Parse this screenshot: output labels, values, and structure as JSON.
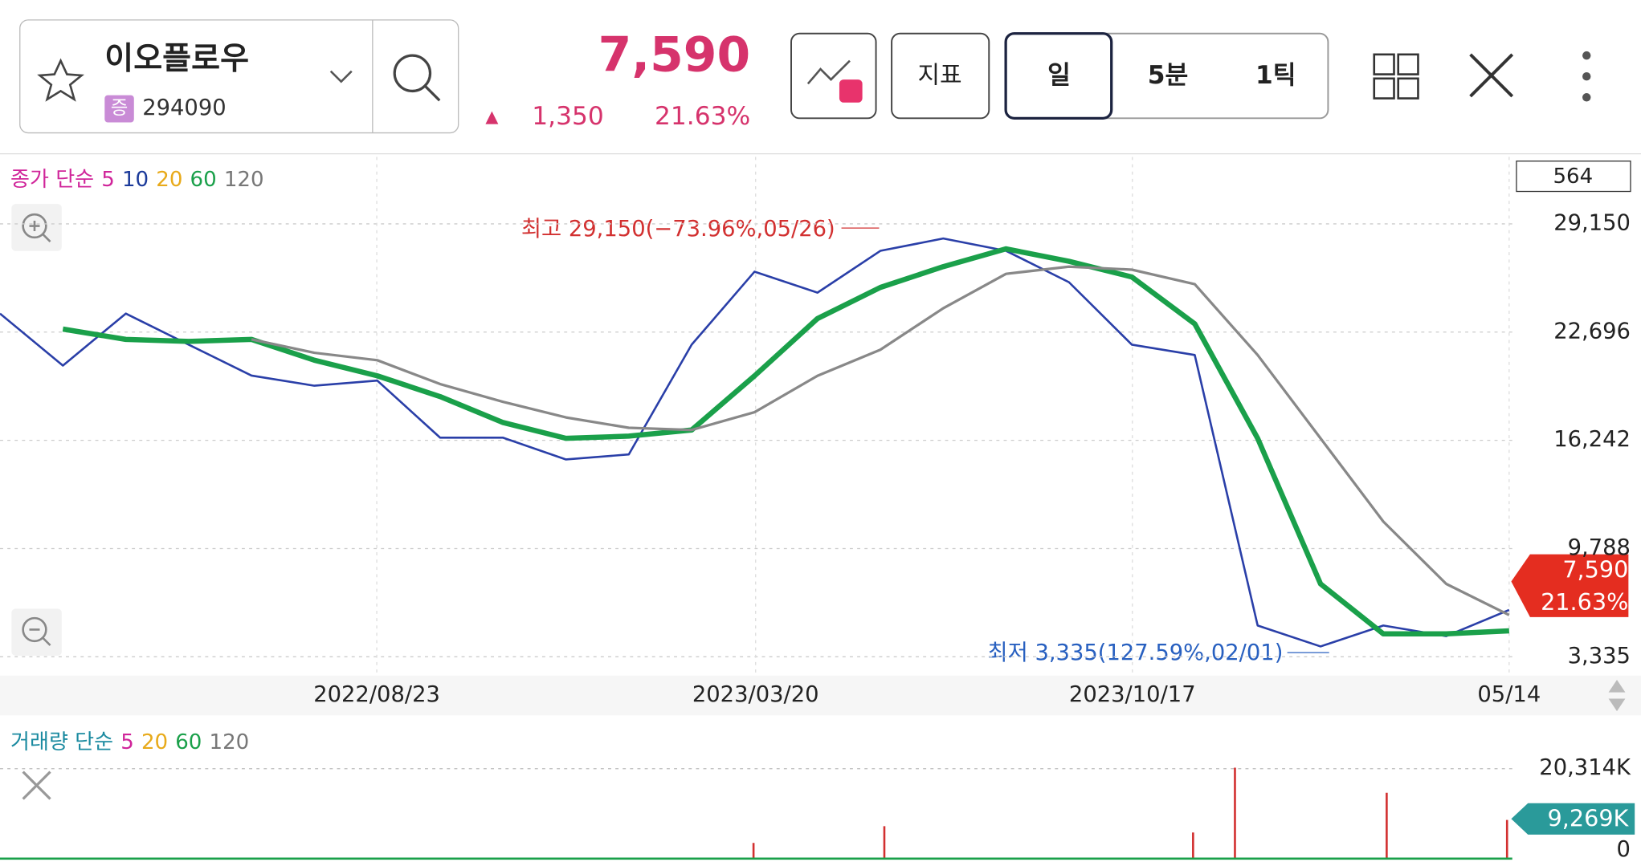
{
  "header": {
    "name": "이오플로우",
    "badge": "증",
    "code": "294090",
    "price": "7,590",
    "arrow": "▲",
    "change": "1,350",
    "change_pct": "21.63%",
    "buttons": [
      "지표",
      "일",
      "5분",
      "1틱"
    ]
  },
  "legend": {
    "label": "종가 단순",
    "periods": [
      "5",
      "10",
      "20",
      "60",
      "120"
    ],
    "colors": [
      "#d0259a",
      "#1b3a9a",
      "#e8aa1a",
      "#1aa04a",
      "#777777"
    ]
  },
  "count_box": "564",
  "annotations": {
    "high": "최고 29,150(−73.96%,05/26)",
    "low": "최저 3,335(127.59%,02/01)"
  },
  "price_tag": {
    "price": "7,590",
    "pct": "21.63%"
  },
  "chart_data": {
    "type": "line",
    "x_labels": [
      "2022/08/23",
      "2023/03/20",
      "2023/10/17",
      "05/14"
    ],
    "ylim": [
      3335,
      29150
    ],
    "yticks": [
      {
        "value": 29150,
        "label": "29,150"
      },
      {
        "value": 22696,
        "label": "22,696"
      },
      {
        "value": 16242,
        "label": "16,242"
      },
      {
        "value": 9788,
        "label": "9,788"
      },
      {
        "value": 3335,
        "label": "3,335"
      }
    ],
    "series": [
      {
        "name": "종가",
        "color": "#2a3fa8",
        "values": [
          23800,
          20700,
          23800,
          21950,
          20100,
          19500,
          19800,
          16400,
          16400,
          15100,
          15400,
          21950,
          26300,
          25050,
          27540,
          28280,
          27540,
          25670,
          21950,
          21330,
          5200,
          3950,
          5200,
          4570,
          6130
        ]
      },
      {
        "name": "60",
        "color": "#1aa04a",
        "values": [
          null,
          22880,
          22260,
          22140,
          22260,
          21020,
          20090,
          18850,
          17300,
          16360,
          16490,
          16860,
          20090,
          23500,
          25360,
          26600,
          27660,
          26920,
          25980,
          23190,
          16360,
          7680,
          4700,
          4700,
          4880
        ]
      },
      {
        "name": "120",
        "color": "#888888",
        "values": [
          null,
          null,
          null,
          null,
          22260,
          21460,
          21020,
          19600,
          18540,
          17610,
          16990,
          16860,
          17920,
          20090,
          21640,
          24120,
          26170,
          26600,
          26420,
          25550,
          21330,
          16360,
          11400,
          7680,
          5820
        ]
      }
    ]
  },
  "volume": {
    "label": "거래량 단순",
    "periods": [
      "5",
      "20",
      "60",
      "120"
    ],
    "colors": [
      "#d0259a",
      "#e8aa1a",
      "#1aa04a",
      "#777777"
    ],
    "ticks": [
      "20,314K",
      "0"
    ],
    "current": "9,269K"
  }
}
